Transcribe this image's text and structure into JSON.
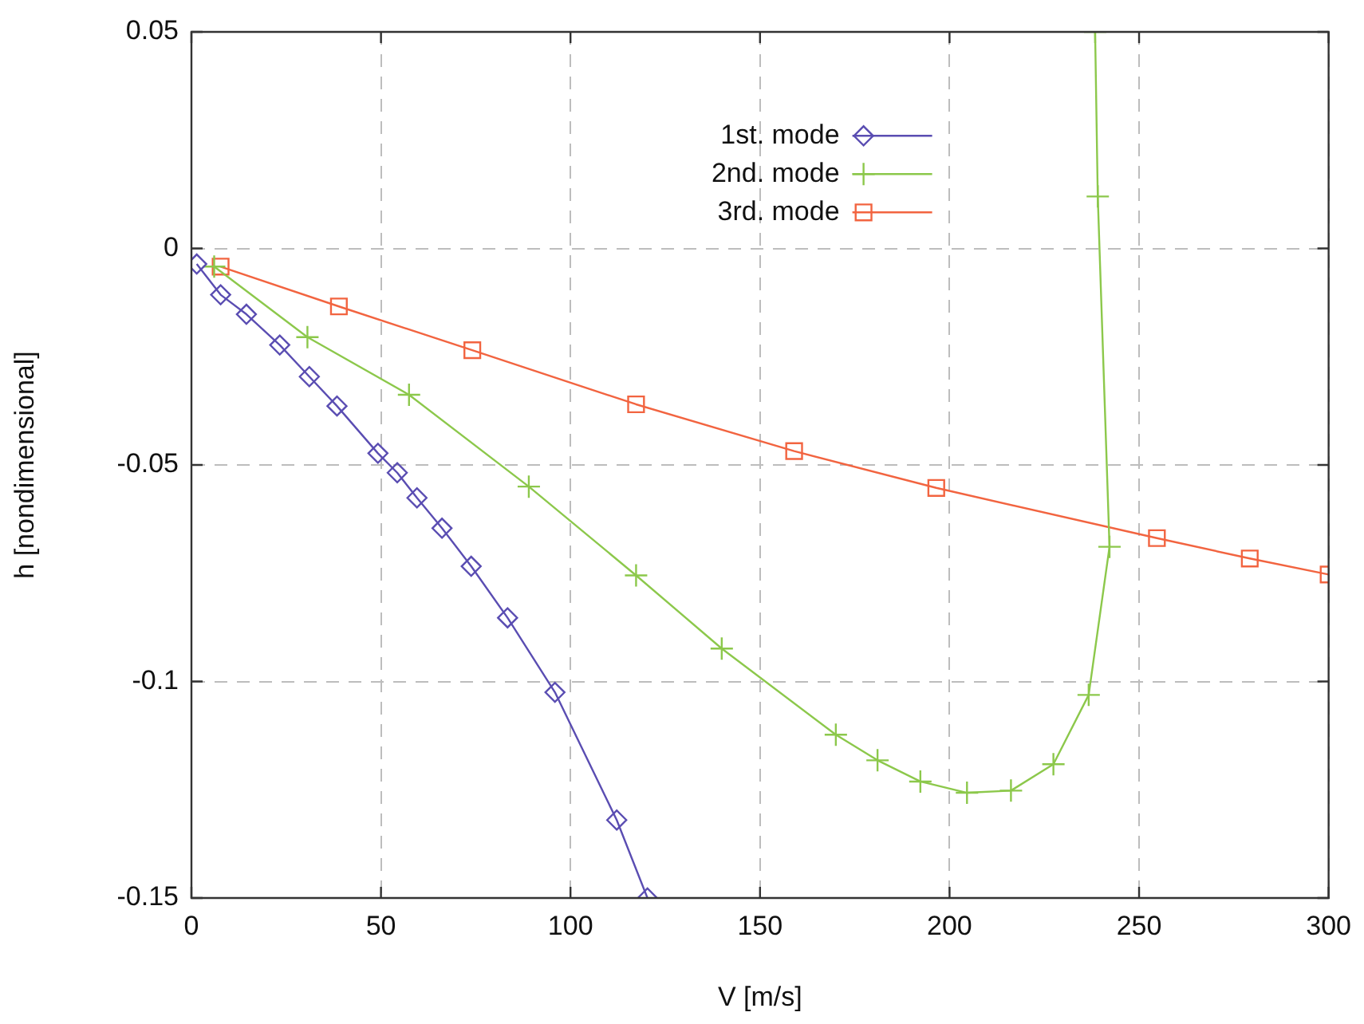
{
  "chart_data": {
    "type": "line",
    "xlabel": "V [m/s]",
    "ylabel": "h [nondimensional]",
    "xlim": [
      0,
      300
    ],
    "xticks": [
      0,
      50,
      100,
      150,
      200,
      250,
      300
    ],
    "ylim": [
      -0.15,
      0.05
    ],
    "yticks": [
      -0.15,
      -0.1,
      -0.05,
      0,
      0.05
    ],
    "grid": true,
    "legend": "top",
    "line_style": "solid",
    "series": [
      {
        "name": "1st. mode",
        "color": "#5a4db2",
        "marker": "diamond",
        "x": [
          1.4,
          7.7,
          14.5,
          23.3,
          31.1,
          38.4,
          49.2,
          54.3,
          59.5,
          66.1,
          73.8,
          83.4,
          95.9,
          112.2,
          120.3
        ],
        "values": [
          -0.0036,
          -0.0107,
          -0.0152,
          -0.0223,
          -0.0296,
          -0.0364,
          -0.0473,
          -0.0518,
          -0.0576,
          -0.0646,
          -0.0734,
          -0.0853,
          -0.1025,
          -0.132,
          -0.15
        ]
      },
      {
        "name": "2nd. mode",
        "color": "#8cc84b",
        "marker": "cross",
        "x": [
          6,
          30.6,
          57.4,
          89,
          117.3,
          139.9,
          170,
          181,
          192.3,
          204.6,
          216.2,
          227.4,
          236.7,
          242.2,
          239.1,
          238.4
        ],
        "values": [
          -0.0042,
          -0.0205,
          -0.0338,
          -0.055,
          -0.0755,
          -0.0924,
          -0.1123,
          -0.1182,
          -0.1231,
          -0.1257,
          -0.1252,
          -0.1191,
          -0.1031,
          -0.0689,
          0.012,
          0.05
        ]
      },
      {
        "name": "3rd. mode",
        "color": "#f26440",
        "marker": "square",
        "x": [
          7.7,
          38.9,
          74.1,
          117.3,
          159,
          196.5,
          254.7,
          279.2,
          300
        ],
        "values": [
          -0.0042,
          -0.0134,
          -0.0235,
          -0.036,
          -0.0468,
          -0.0553,
          -0.0669,
          -0.0716,
          -0.0753
        ]
      }
    ]
  }
}
